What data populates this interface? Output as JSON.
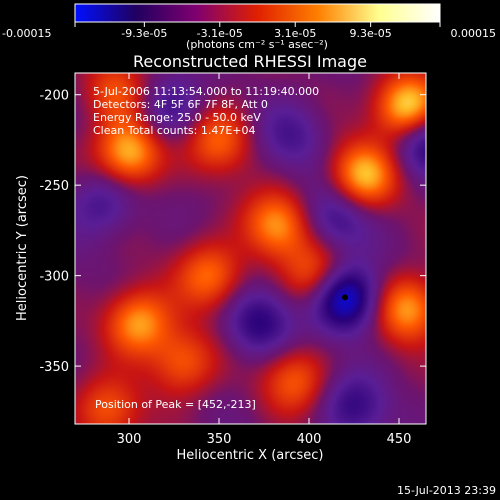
{
  "colorbar": {
    "tick_labels": [
      "-0.00015",
      "-9.3e-05",
      "-3.1e-05",
      "3.1e-05",
      "9.3e-05",
      "0.00015"
    ],
    "tick_values": [
      -0.00015,
      -9.3e-05,
      -3.1e-05,
      3.1e-05,
      9.3e-05,
      0.00015
    ],
    "unit_label": "(photons cm⁻² s⁻¹ asec⁻²)",
    "range": [
      -0.00015,
      0.00015
    ],
    "colors": [
      "#0010ff",
      "#200060",
      "#800070",
      "#e02000",
      "#ff8000",
      "#ffff90",
      "#ffffff"
    ]
  },
  "chart_data": {
    "type": "heatmap",
    "title": "Reconstructed RHESSI Image",
    "xlabel": "Heliocentric X (arcsec)",
    "ylabel": "Heliocentric Y (arcsec)",
    "xlim": [
      270,
      465
    ],
    "ylim": [
      -382,
      -188
    ],
    "x_ticks": [
      300,
      350,
      400,
      450
    ],
    "x_tick_labels": [
      "300",
      "350",
      "400",
      "450"
    ],
    "y_ticks": [
      -200,
      -250,
      -300,
      -350
    ],
    "y_tick_labels": [
      "-200",
      "-250",
      "-300",
      "-350"
    ],
    "annotations": [
      "5-Jul-2006 11:13:54.000 to 11:19:40.000",
      "Detectors: 4F 5F 6F 7F 8F, Att 0",
      "Energy Range: 25.0 - 50.0 keV",
      "Clean    Total counts: 1.47E+04"
    ],
    "peak_label": "Position of Peak = [452,-213]",
    "peak_position": [
      452,
      -213
    ],
    "sources": [
      {
        "x": 455,
        "y": -207,
        "v": 1.0
      },
      {
        "x": 430,
        "y": -245,
        "v": 0.8
      },
      {
        "x": 300,
        "y": -232,
        "v": 0.85
      },
      {
        "x": 305,
        "y": -326,
        "v": 0.75
      },
      {
        "x": 345,
        "y": -300,
        "v": 0.6
      },
      {
        "x": 382,
        "y": -272,
        "v": 0.7
      },
      {
        "x": 455,
        "y": -318,
        "v": 0.75
      },
      {
        "x": 404,
        "y": -300,
        "v": 0.55
      },
      {
        "x": 330,
        "y": -348,
        "v": 0.55
      },
      {
        "x": 292,
        "y": -198,
        "v": 0.45
      },
      {
        "x": 350,
        "y": -225,
        "v": 0.55
      },
      {
        "x": 392,
        "y": -358,
        "v": 0.5
      },
      {
        "x": 288,
        "y": -375,
        "v": 0.5
      },
      {
        "x": 420,
        "y": -312,
        "v": -1.0
      },
      {
        "x": 465,
        "y": -225,
        "v": -0.6
      },
      {
        "x": 372,
        "y": -326,
        "v": -0.55
      },
      {
        "x": 415,
        "y": -268,
        "v": -0.45
      },
      {
        "x": 425,
        "y": -372,
        "v": -0.45
      },
      {
        "x": 322,
        "y": -208,
        "v": -0.4
      },
      {
        "x": 390,
        "y": -222,
        "v": -0.35
      },
      {
        "x": 285,
        "y": -260,
        "v": -0.4
      }
    ]
  },
  "footer": {
    "timestamp": "15-Jul-2013 23:39"
  }
}
